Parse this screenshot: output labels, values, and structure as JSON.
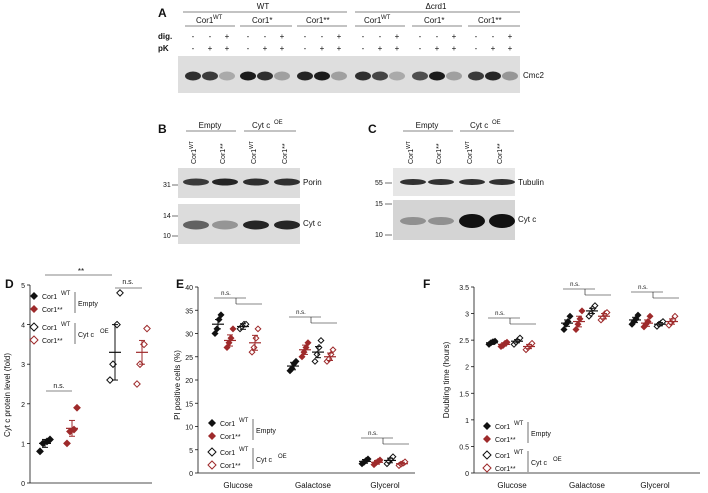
{
  "panelA": {
    "letter": "A",
    "wt": "WT",
    "crd1": "Δcrd1",
    "groups": [
      "Cor1",
      "Cor1*",
      "Cor1**",
      "Cor1",
      "Cor1*",
      "Cor1**"
    ],
    "wt_sup": "WT",
    "row_dig": "dig.",
    "row_pk": "pK",
    "dig_signs": [
      "-",
      "-",
      "+"
    ],
    "pk_signs": [
      "-",
      "+",
      "+"
    ],
    "band_label": "Cmc2"
  },
  "panelB": {
    "letter": "B",
    "group_empty": "Empty",
    "group_cyt": "Cyt c",
    "group_cyt_sup": "OE",
    "lanes": [
      "Cor1WT",
      "Cor1**",
      "Cor1WT",
      "Cor1**"
    ],
    "mw_top": [
      "31"
    ],
    "mw_bottom": [
      "14",
      "10"
    ],
    "band_porin": "Porin",
    "band_cytc": "Cyt c"
  },
  "panelC": {
    "letter": "C",
    "group_empty": "Empty",
    "group_cyt": "Cyt c",
    "group_cyt_sup": "OE",
    "lanes": [
      "Cor1WT",
      "Cor1**",
      "Cor1WT",
      "Cor1**"
    ],
    "mw_top": [
      "55"
    ],
    "mw_bottom": [
      "15",
      "10"
    ],
    "band_tubulin": "Tubulin",
    "band_cytc": "Cyt c"
  },
  "panelD": {
    "letter": "D",
    "ylabel": "Cyt c protein level (fold)",
    "sig_main": "**",
    "sig_ns": "n.s.",
    "legend": {
      "wt": "Cor1",
      "wt_sup": "WT",
      "mut": "Cor1**",
      "empty": "Empty",
      "cyt": "Cyt c",
      "cyt_sup": "OE"
    },
    "colors": {
      "black": "#111111",
      "red": "#9e2a2b"
    }
  },
  "panelE": {
    "letter": "E",
    "ylabel": "PI positive cells (%)",
    "sig_ns": "n.s.",
    "categories": [
      "Glucose",
      "Galactose",
      "Glycerol"
    ]
  },
  "panelF": {
    "letter": "F",
    "ylabel": "Doubling time (hours)",
    "sig_ns": "n.s.",
    "categories": [
      "Glucose",
      "Galactose",
      "Glycerol"
    ]
  },
  "chart_data": [
    {
      "type": "scatter",
      "id": "D",
      "ylabel": "Cyt c protein level (fold)",
      "ylim": [
        0,
        5
      ],
      "yticks": [
        0,
        1,
        2,
        3,
        4,
        5
      ],
      "series": [
        {
          "name": "Cor1WT Empty",
          "marker": "diamond-filled",
          "color": "#111111",
          "mean": 1.0,
          "sem": 0.1,
          "values": [
            0.8,
            1.0,
            1.05,
            1.1
          ]
        },
        {
          "name": "Cor1** Empty",
          "marker": "diamond-filled",
          "color": "#9e2a2b",
          "mean": 1.38,
          "sem": 0.2,
          "values": [
            1.0,
            1.3,
            1.35,
            1.9
          ]
        },
        {
          "name": "Cor1WT Cyt c OE",
          "marker": "diamond-open",
          "color": "#111111",
          "mean": 3.3,
          "sem": 0.7,
          "values": [
            2.6,
            3.0,
            4.0,
            4.8
          ]
        },
        {
          "name": "Cor1** Cyt c OE",
          "marker": "diamond-open",
          "color": "#9e2a2b",
          "mean": 3.3,
          "sem": 0.3,
          "values": [
            2.5,
            3.0,
            3.5,
            3.9
          ]
        }
      ]
    },
    {
      "type": "scatter",
      "id": "E",
      "ylabel": "PI positive cells (%)",
      "ylim": [
        0,
        40
      ],
      "yticks": [
        0,
        5,
        10,
        15,
        20,
        25,
        30,
        35,
        40
      ],
      "categories": [
        "Glucose",
        "Galactose",
        "Glycerol"
      ],
      "series": [
        {
          "name": "Cor1WT Empty",
          "marker": "diamond-filled",
          "color": "#111111",
          "means": [
            32.0,
            23.0,
            2.5
          ],
          "sems": [
            1.0,
            0.8,
            0.4
          ],
          "values": [
            [
              30,
              31,
              33,
              34
            ],
            [
              22,
              22.5,
              23.5,
              24
            ],
            [
              2,
              2.3,
              2.7,
              3
            ]
          ]
        },
        {
          "name": "Cor1** Empty",
          "marker": "diamond-filled",
          "color": "#9e2a2b",
          "means": [
            28.5,
            26.5,
            2.3
          ],
          "sems": [
            1.2,
            1.0,
            0.4
          ],
          "values": [
            [
              27,
              28,
              29,
              31
            ],
            [
              25,
              26,
              27,
              28
            ],
            [
              1.8,
              2.2,
              2.5,
              2.8
            ]
          ]
        },
        {
          "name": "Cor1WT Cyt c OE",
          "marker": "diamond-open",
          "color": "#111111",
          "means": [
            31.5,
            26.0,
            2.7
          ],
          "sems": [
            0.6,
            1.2,
            0.5
          ],
          "values": [
            [
              31,
              31.5,
              32,
              32
            ],
            [
              24,
              25.5,
              27,
              28.5
            ],
            [
              2,
              2.5,
              3,
              3.5
            ]
          ]
        },
        {
          "name": "Cor1** Cyt c OE",
          "marker": "diamond-open",
          "color": "#9e2a2b",
          "means": [
            28.0,
            25.0,
            2.0
          ],
          "sems": [
            1.6,
            0.8,
            0.3
          ],
          "values": [
            [
              26,
              27,
              29,
              31
            ],
            [
              24,
              24.5,
              25.5,
              26.5
            ],
            [
              1.6,
              1.9,
              2.1,
              2.4
            ]
          ]
        }
      ]
    },
    {
      "type": "scatter",
      "id": "F",
      "ylabel": "Doubling time (hours)",
      "ylim": [
        0,
        3.5
      ],
      "yticks": [
        0,
        0.5,
        1,
        1.5,
        2,
        2.5,
        3,
        3.5
      ],
      "categories": [
        "Glucose",
        "Galactose",
        "Glycerol"
      ],
      "series": [
        {
          "name": "Cor1WT Empty",
          "marker": "diamond-filled",
          "color": "#111111",
          "means": [
            2.45,
            2.82,
            2.88
          ],
          "sems": [
            0.03,
            0.06,
            0.05
          ],
          "values": [
            [
              2.42,
              2.45,
              2.47,
              2.48
            ],
            [
              2.7,
              2.8,
              2.85,
              2.95
            ],
            [
              2.8,
              2.85,
              2.9,
              2.97
            ]
          ]
        },
        {
          "name": "Cor1** Empty",
          "marker": "diamond-filled",
          "color": "#9e2a2b",
          "means": [
            2.42,
            2.85,
            2.82
          ],
          "sems": [
            0.03,
            0.1,
            0.06
          ],
          "values": [
            [
              2.38,
              2.4,
              2.44,
              2.46
            ],
            [
              2.7,
              2.8,
              2.9,
              3.05
            ],
            [
              2.75,
              2.8,
              2.85,
              2.95
            ]
          ]
        },
        {
          "name": "Cor1WT Cyt c OE",
          "marker": "diamond-open",
          "color": "#111111",
          "means": [
            2.48,
            3.05,
            2.8
          ],
          "sems": [
            0.03,
            0.05,
            0.03
          ],
          "values": [
            [
              2.42,
              2.46,
              2.5,
              2.54
            ],
            [
              2.95,
              3.0,
              3.1,
              3.15
            ],
            [
              2.76,
              2.8,
              2.82,
              2.85
            ]
          ]
        },
        {
          "name": "Cor1** Cyt c OE",
          "marker": "diamond-open",
          "color": "#9e2a2b",
          "means": [
            2.38,
            2.95,
            2.85
          ],
          "sems": [
            0.04,
            0.05,
            0.05
          ],
          "values": [
            [
              2.32,
              2.36,
              2.4,
              2.44
            ],
            [
              2.88,
              2.92,
              3.0,
              3.02
            ],
            [
              2.78,
              2.83,
              2.88,
              2.95
            ]
          ]
        }
      ]
    }
  ]
}
